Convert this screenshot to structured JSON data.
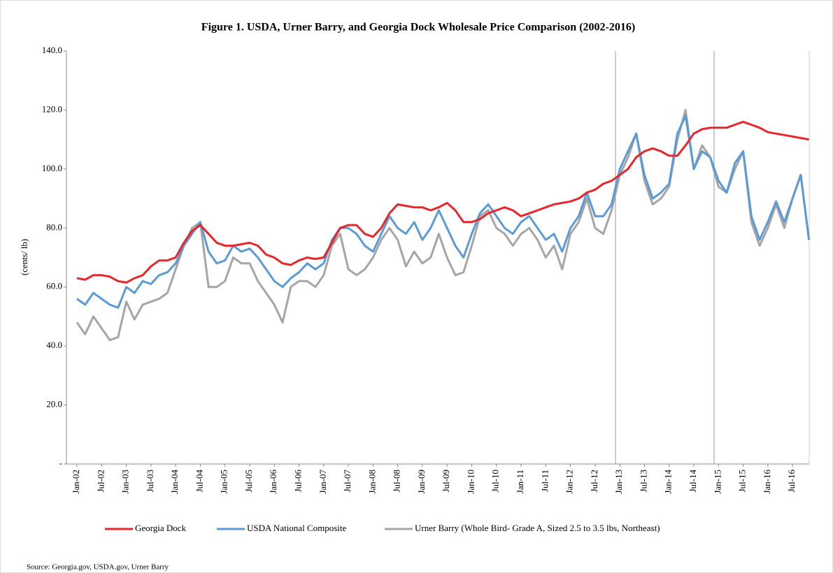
{
  "chart_data": {
    "type": "line",
    "title": "Figure 1. USDA, Urner Barry, and Georgia Dock Wholesale Price Comparison (2002-2016)",
    "y_label": "(cents/ lb)",
    "source": "Source: Georgia.gov, USDA.gov, Urner Barry",
    "categories": [
      "Jan-02",
      null,
      null,
      "Jul-02",
      null,
      null,
      "Jan-03",
      null,
      null,
      "Jul-03",
      null,
      null,
      "Jan-04",
      null,
      null,
      "Jul-04",
      null,
      null,
      "Jan-05",
      null,
      null,
      "Jul-05",
      null,
      null,
      "Jan-06",
      null,
      null,
      "Jul-06",
      null,
      null,
      "Jan-07",
      null,
      null,
      "Jul-07",
      null,
      null,
      "Jan-08",
      null,
      null,
      "Jul-08",
      null,
      null,
      "Jan-09",
      null,
      null,
      "Jul-09",
      null,
      null,
      "Jan-10",
      null,
      null,
      "Jul-10",
      null,
      null,
      "Jan-11",
      null,
      null,
      "Jul-11",
      null,
      null,
      "Jan-12",
      null,
      null,
      "Jul-12",
      null,
      null,
      "Jan-13",
      null,
      null,
      "Jul-13",
      null,
      null,
      "Jan-14",
      null,
      null,
      "Jul-14",
      null,
      null,
      "Jan-15",
      null,
      null,
      "Jul-15",
      null,
      null,
      "Jan-16",
      null,
      null,
      "Jul-16",
      null,
      null
    ],
    "series": [
      {
        "name": "Georgia Dock",
        "color": "#e8262a",
        "values": [
          63,
          62.5,
          64,
          64,
          63.5,
          62,
          61.5,
          63,
          64,
          67,
          69,
          69,
          70,
          75,
          79,
          81,
          78,
          75,
          74,
          74,
          74.5,
          75,
          74,
          71,
          70,
          68,
          67.5,
          69,
          70,
          69.5,
          70,
          75,
          80,
          81,
          81,
          78,
          77,
          80,
          85,
          88,
          87.5,
          87,
          87,
          86,
          87,
          88.5,
          86,
          82,
          82,
          83,
          85,
          86,
          87,
          86,
          84,
          85,
          86,
          87,
          88,
          88.5,
          89,
          90,
          92,
          93,
          95,
          96,
          98,
          100,
          104,
          106,
          107,
          106,
          104.5,
          104.5,
          108,
          112,
          113.5,
          114,
          114,
          114,
          115,
          116,
          115,
          114,
          112.5,
          112,
          111.5,
          111,
          110.5,
          110
        ]
      },
      {
        "name": "USDA National Composite",
        "color": "#5b9bd5",
        "values": [
          56,
          54,
          58,
          56,
          54,
          53,
          60,
          58,
          62,
          61,
          64,
          65,
          68,
          74,
          78,
          82,
          72,
          68,
          69,
          74,
          72,
          73,
          70,
          66,
          62,
          60,
          63,
          65,
          68,
          66,
          68,
          76,
          80,
          80,
          78,
          74,
          72,
          78,
          84,
          80,
          78,
          82,
          76,
          80,
          86,
          80,
          74,
          70,
          78,
          85,
          88,
          84,
          80,
          78,
          82,
          84,
          80,
          76,
          78,
          72,
          80,
          84,
          92,
          84,
          84,
          88,
          100,
          106,
          112,
          98,
          90,
          92,
          95,
          112,
          118,
          100,
          106,
          104,
          96,
          92,
          102,
          106,
          84,
          76,
          82,
          89,
          82,
          90,
          98,
          76
        ]
      },
      {
        "name": "Urner Barry (Whole Bird- Grade A, Sized 2.5 to 3.5 lbs, Northeast)",
        "color": "#a5a5a5",
        "values": [
          48,
          44,
          50,
          46,
          42,
          43,
          55,
          49,
          54,
          55,
          56,
          58,
          66,
          74,
          80,
          82,
          60,
          60,
          62,
          70,
          68,
          68,
          62,
          58,
          54,
          48,
          60,
          62,
          62,
          60,
          64,
          74,
          78,
          66,
          64,
          66,
          70,
          76,
          80,
          76,
          67,
          72,
          68,
          70,
          78,
          70,
          64,
          65,
          74,
          84,
          86,
          80,
          78,
          74,
          78,
          80,
          76,
          70,
          74,
          66,
          78,
          82,
          90,
          80,
          78,
          86,
          98,
          104,
          112,
          96,
          88,
          90,
          94,
          110,
          120,
          100,
          108,
          104,
          94,
          92,
          100,
          106,
          82,
          74,
          80,
          88,
          80,
          90,
          98,
          76
        ]
      }
    ],
    "ylim": [
      0,
      140
    ],
    "yticks": [
      {
        "value": 0,
        "label": "-"
      },
      {
        "value": 20,
        "label": "20.0"
      },
      {
        "value": 40,
        "label": "40.0"
      },
      {
        "value": 60,
        "label": "60.0"
      },
      {
        "value": 80,
        "label": "80.0"
      },
      {
        "value": 100,
        "label": "100.0"
      },
      {
        "value": 120,
        "label": "120.0"
      },
      {
        "value": 140,
        "label": "140.0"
      }
    ],
    "grid": false,
    "legend": "bottom"
  }
}
